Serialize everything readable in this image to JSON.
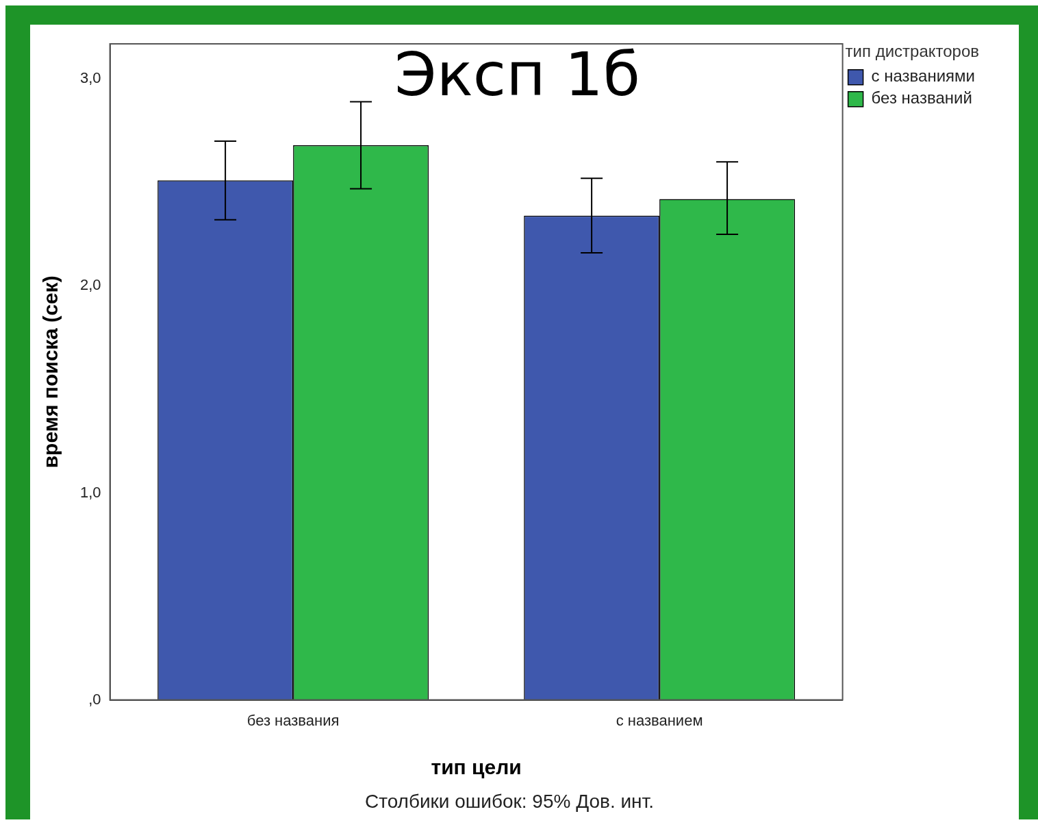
{
  "chart_data": {
    "type": "bar",
    "title": "Эксп 1б",
    "xlabel": "тип цели",
    "ylabel": "время поиска (сек)",
    "legend_title": "тип дистракторов",
    "categories": [
      "без названия",
      "с названием"
    ],
    "series": [
      {
        "name": "с названиями",
        "color": "#3f58ad",
        "values": [
          2.51,
          2.34
        ],
        "errors": [
          [
            2.32,
            2.7
          ],
          [
            2.16,
            2.52
          ]
        ]
      },
      {
        "name": "без названий",
        "color": "#2fb84a",
        "values": [
          2.68,
          2.42
        ],
        "errors": [
          [
            2.47,
            2.89
          ],
          [
            2.25,
            2.6
          ]
        ]
      }
    ],
    "ylim": [
      0,
      3.17
    ],
    "yticks": [
      {
        "value": 0,
        "label": ",0"
      },
      {
        "value": 1,
        "label": "1,0"
      },
      {
        "value": 2,
        "label": "2,0"
      },
      {
        "value": 3,
        "label": "3,0"
      }
    ],
    "grid": false,
    "legend": "right",
    "annotations": [
      "Столбики ошибок: 95% Дов. инт."
    ]
  }
}
